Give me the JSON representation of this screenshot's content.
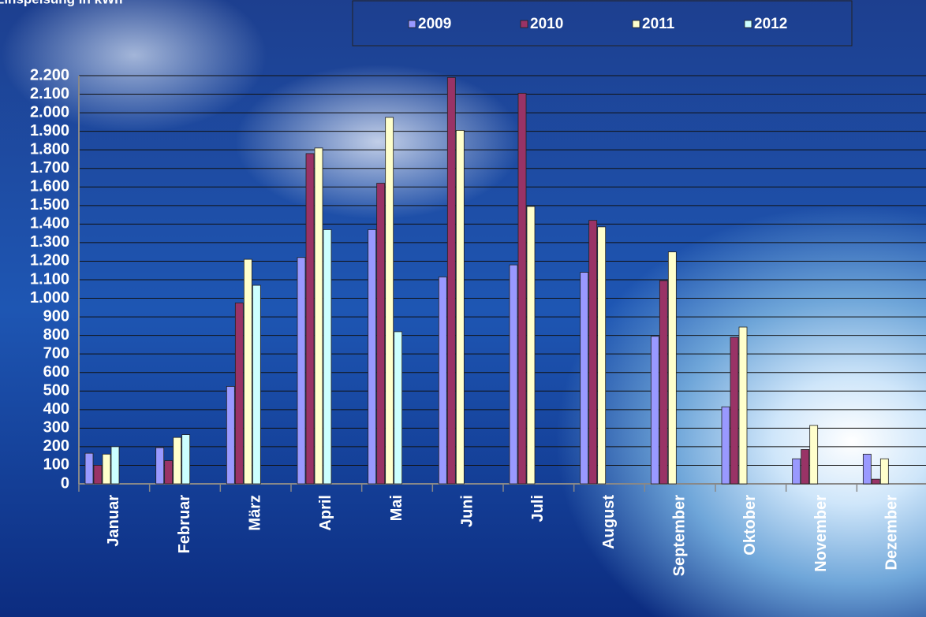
{
  "chart_data": {
    "type": "bar",
    "title": "Einspeisung in kWh",
    "categories": [
      "Januar",
      "Februar",
      "März",
      "April",
      "Mai",
      "Juni",
      "Juli",
      "August",
      "September",
      "Oktober",
      "November",
      "Dezember"
    ],
    "series": [
      {
        "name": "2009",
        "color": "#9999ff",
        "values": [
          165,
          195,
          525,
          1220,
          1370,
          1115,
          1180,
          1140,
          795,
          415,
          135,
          160
        ]
      },
      {
        "name": "2010",
        "color": "#993366",
        "values": [
          100,
          125,
          975,
          1780,
          1620,
          2190,
          2105,
          1420,
          1095,
          790,
          185,
          25
        ]
      },
      {
        "name": "2011",
        "color": "#ffffcc",
        "values": [
          160,
          250,
          1210,
          1810,
          1975,
          1905,
          1495,
          1385,
          1250,
          845,
          315,
          135
        ]
      },
      {
        "name": "2012",
        "color": "#ccffff",
        "values": [
          200,
          265,
          1070,
          1370,
          820,
          null,
          null,
          null,
          null,
          null,
          null,
          null
        ]
      }
    ],
    "ylim": [
      0,
      2200
    ],
    "yticks": [
      0,
      100,
      200,
      300,
      400,
      500,
      600,
      700,
      800,
      900,
      {
        "value": 1000,
        "label": "1.000"
      },
      {
        "value": 1100,
        "label": "1.100"
      },
      {
        "value": 1200,
        "label": "1.200"
      },
      {
        "value": 1300,
        "label": "1.300"
      },
      {
        "value": 1400,
        "label": "1.400"
      },
      {
        "value": 1500,
        "label": "1.500"
      },
      {
        "value": 1600,
        "label": "1.600"
      },
      {
        "value": 1700,
        "label": "1.700"
      },
      {
        "value": 1800,
        "label": "1.800"
      },
      {
        "value": 1900,
        "label": "1.900"
      },
      {
        "value": 2000,
        "label": "2.000"
      },
      {
        "value": 2100,
        "label": "2.100"
      },
      {
        "value": 2200,
        "label": "2.200"
      }
    ],
    "grid": true,
    "legend": "top"
  }
}
